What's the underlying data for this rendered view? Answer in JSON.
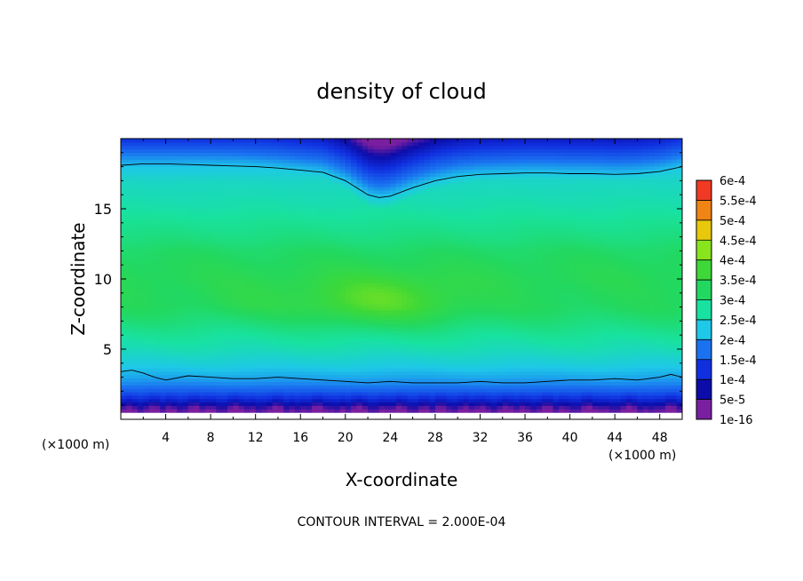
{
  "chart_data": {
    "type": "heatmap",
    "title": "density of cloud",
    "xlabel": "X-coordinate",
    "ylabel": "Z-coordinate",
    "x_unit": "(×1000 m)",
    "z_unit": "(×1000 m)",
    "footer": "CONTOUR INTERVAL = 2.000E-04",
    "xlim": [
      0,
      50
    ],
    "ylim": [
      0,
      20
    ],
    "x_ticks": [
      "4",
      "8",
      "12",
      "16",
      "20",
      "24",
      "28",
      "32",
      "36",
      "40",
      "44",
      "48"
    ],
    "y_ticks": [
      "5",
      "10",
      "15"
    ],
    "colorbar": {
      "labels": [
        "1e-16",
        "5e-5",
        "1e-4",
        "1.5e-4",
        "2e-4",
        "2.5e-4",
        "3e-4",
        "3.5e-4",
        "4e-4",
        "4.5e-4",
        "5e-4",
        "5.5e-4",
        "6e-4"
      ],
      "colors": [
        "#7a1fa0",
        "#0c0ca8",
        "#1030e0",
        "#1a72f0",
        "#1ec8e8",
        "#18e2a0",
        "#22d860",
        "#3ed838",
        "#88e41c",
        "#e8c80a",
        "#f08414",
        "#f03a24",
        "#f47a88"
      ]
    },
    "field": {
      "x": [
        0,
        2,
        4,
        6,
        8,
        10,
        12,
        14,
        16,
        18,
        20,
        22,
        24,
        26,
        28,
        30,
        32,
        34,
        36,
        38,
        40,
        42,
        44,
        46,
        48,
        50
      ],
      "z": [
        0.5,
        1.0,
        1.5,
        2.0,
        2.5,
        3.0,
        3.5,
        4.0,
        5.0,
        6.0,
        7.0,
        8.0,
        9.0,
        10.0,
        11.0,
        12.0,
        13.0,
        14.0,
        15.0,
        16.0,
        17.0,
        18.0,
        19.0,
        20.0
      ],
      "profile": [
        0.1,
        0.4,
        0.9,
        1.3,
        1.6,
        1.8,
        1.95,
        2.1,
        2.35,
        2.55,
        2.8,
        3.0,
        3.05,
        3.1,
        3.05,
        2.95,
        2.75,
        2.6,
        2.45,
        2.35,
        2.25,
        2.0,
        1.5,
        0.9
      ],
      "max_x": 23,
      "max_z": 8.5,
      "max_value": 3.7
    },
    "contours": [
      {
        "level": "2e-4",
        "x": [
          0,
          2,
          4,
          6,
          8,
          10,
          12,
          14,
          16,
          18,
          20,
          21,
          22,
          23,
          24,
          26,
          28,
          30,
          32,
          34,
          36,
          38,
          40,
          42,
          44,
          46,
          48,
          50
        ],
        "z": [
          18.1,
          18.2,
          18.2,
          18.15,
          18.1,
          18.05,
          18.0,
          17.9,
          17.75,
          17.6,
          17.0,
          16.5,
          16.0,
          15.8,
          15.9,
          16.5,
          17.0,
          17.3,
          17.45,
          17.5,
          17.55,
          17.55,
          17.5,
          17.5,
          17.45,
          17.5,
          17.65,
          18.0
        ]
      },
      {
        "level": "2e-4",
        "x": [
          0,
          1,
          2,
          3,
          4,
          6,
          8,
          10,
          12,
          14,
          16,
          18,
          20,
          22,
          24,
          26,
          28,
          30,
          32,
          34,
          36,
          38,
          40,
          42,
          44,
          46,
          48,
          49,
          50
        ],
        "z": [
          3.4,
          3.5,
          3.3,
          3.0,
          2.8,
          3.1,
          3.0,
          2.9,
          2.9,
          3.0,
          2.9,
          2.8,
          2.7,
          2.6,
          2.7,
          2.6,
          2.6,
          2.6,
          2.7,
          2.6,
          2.6,
          2.7,
          2.8,
          2.8,
          2.9,
          2.8,
          3.0,
          3.2,
          3.0
        ]
      }
    ]
  }
}
